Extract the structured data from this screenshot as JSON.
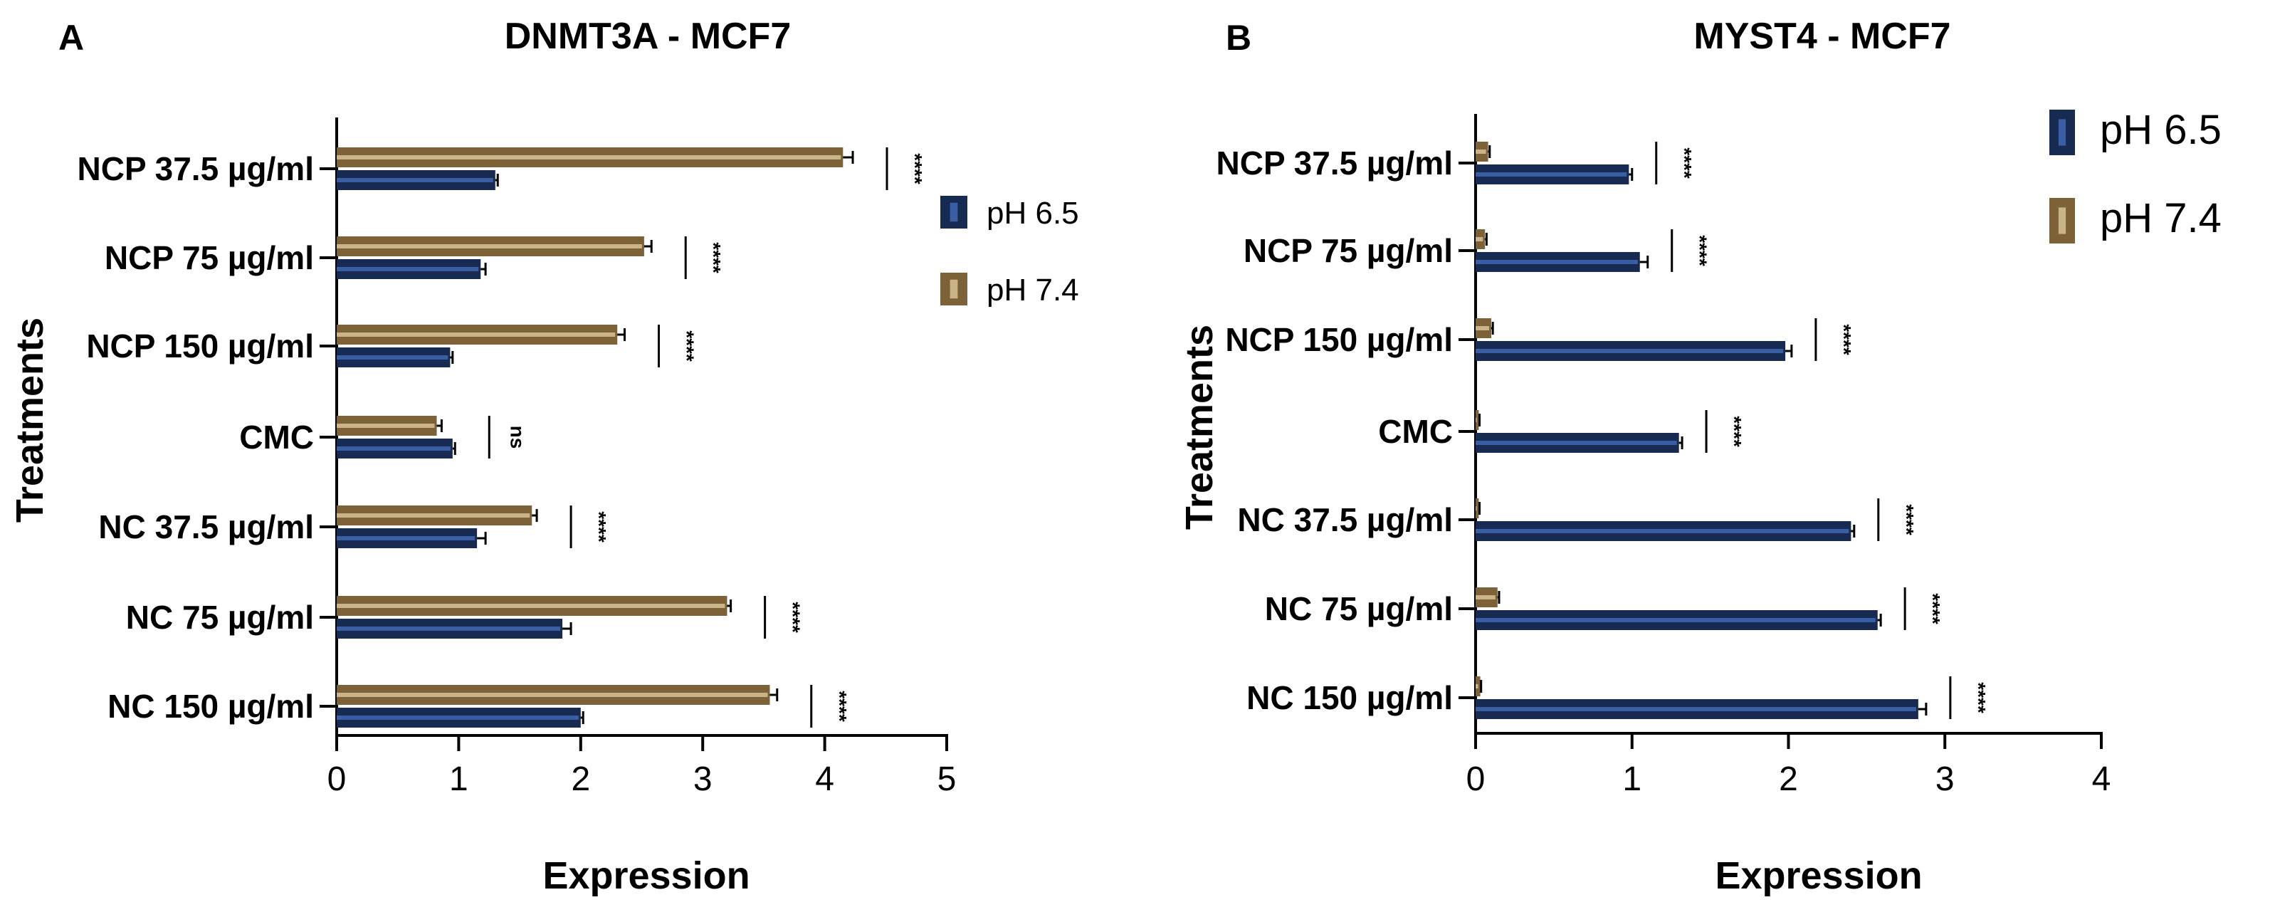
{
  "y_axis_title": "Treatments",
  "legend_colors": {
    "pH 6.5": "#162a52",
    "pH 7.4": "#7d6237",
    "pH 6.5 inner": "#3a5ea3",
    "pH 7.4 inner": "#c9b489"
  },
  "chart_data": [
    {
      "type": "bar",
      "orientation": "horizontal",
      "panel": "A",
      "title": "DNMT3A - MCF7",
      "xlabel": "Expression",
      "ylabel": "Treatments",
      "xlim": [
        0,
        5
      ],
      "xticks": [
        "0",
        "1",
        "2",
        "3",
        "4",
        "5"
      ],
      "categories": [
        "NCP 37.5 µg/ml",
        "NCP 75 µg/ml",
        "NCP 150 µg/ml",
        "CMC",
        "NC 37.5 µg/ml",
        "NC 75 µg/ml",
        "NC 150 µg/ml"
      ],
      "series": [
        {
          "name": "pH 6.5",
          "color": "#162a52",
          "values": [
            1.3,
            1.18,
            0.93,
            0.95,
            1.15,
            1.85,
            2.0
          ],
          "errors": [
            0.02,
            0.04,
            0.02,
            0.02,
            0.07,
            0.07,
            0.02
          ]
        },
        {
          "name": "pH 7.4",
          "color": "#7d6237",
          "values": [
            4.15,
            2.52,
            2.3,
            0.82,
            1.6,
            3.2,
            3.55
          ],
          "errors": [
            0.08,
            0.06,
            0.06,
            0.04,
            0.04,
            0.03,
            0.06
          ]
        }
      ],
      "significance": [
        "****",
        "****",
        "****",
        "ns",
        "****",
        "****",
        "****"
      ],
      "legend": "right"
    },
    {
      "type": "bar",
      "orientation": "horizontal",
      "panel": "B",
      "title": "MYST4 - MCF7",
      "xlabel": "Expression",
      "ylabel": "Treatments",
      "xlim": [
        0,
        4
      ],
      "xticks": [
        "0",
        "1",
        "2",
        "3",
        "4"
      ],
      "categories": [
        "NCP 37.5 µg/ml",
        "NCP 75 µg/ml",
        "NCP 150 µg/ml",
        "CMC",
        "NC 37.5 µg/ml",
        "NC 75 µg/ml",
        "NC 150 µg/ml"
      ],
      "series": [
        {
          "name": "pH 6.5",
          "color": "#162a52",
          "values": [
            0.98,
            1.05,
            1.98,
            1.3,
            2.4,
            2.57,
            2.83
          ],
          "errors": [
            0.02,
            0.05,
            0.04,
            0.02,
            0.02,
            0.02,
            0.05
          ]
        },
        {
          "name": "pH 7.4",
          "color": "#7d6237",
          "values": [
            0.08,
            0.06,
            0.1,
            0.02,
            0.02,
            0.14,
            0.03
          ],
          "errors": [
            0.01,
            0.01,
            0.01,
            0.005,
            0.005,
            0.01,
            0.005
          ]
        }
      ],
      "significance": [
        "****",
        "****",
        "****",
        "****",
        "****",
        "****",
        "****"
      ],
      "legend": "top-right"
    }
  ]
}
